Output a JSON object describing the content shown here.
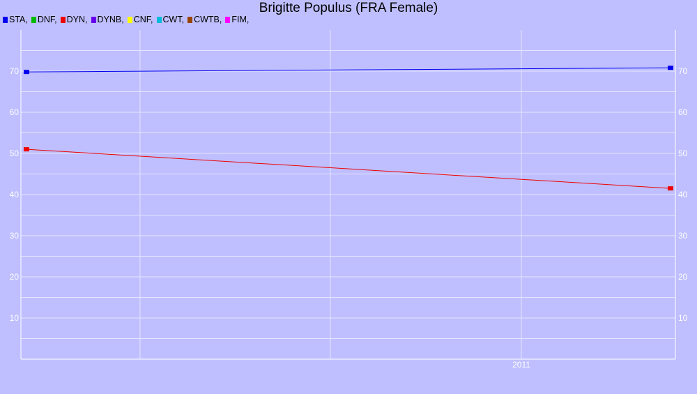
{
  "chart_data": {
    "type": "line",
    "title": "Brigitte Populus (FRA Female)",
    "xlabel": "",
    "ylabel": "",
    "x_tick_labels": [
      "2011"
    ],
    "ylim": [
      0,
      80
    ],
    "y_ticks": [
      10,
      20,
      30,
      40,
      50,
      60,
      70
    ],
    "grid": true,
    "legend_placement": "top-left",
    "legend": [
      {
        "name": "STA",
        "label": "STA,",
        "color": "#0000ee"
      },
      {
        "name": "DNF",
        "label": "DNF,",
        "color": "#00bb00"
      },
      {
        "name": "DYN",
        "label": "DYN,",
        "color": "#ee0000"
      },
      {
        "name": "DYNB",
        "label": "DYNB,",
        "color": "#6600ee"
      },
      {
        "name": "CNF",
        "label": "CNF,",
        "color": "#ffff00"
      },
      {
        "name": "CWT",
        "label": "CWT,",
        "color": "#00bbdd"
      },
      {
        "name": "CWTB",
        "label": "CWTB,",
        "color": "#994400"
      },
      {
        "name": "FIM",
        "label": "FIM,",
        "color": "#ff00ff"
      }
    ],
    "series": [
      {
        "name": "STA",
        "color": "#0000ee",
        "values": [
          69.8,
          70.8
        ]
      },
      {
        "name": "DYN",
        "color": "#ee0000",
        "values": [
          51.0,
          41.5
        ]
      }
    ]
  }
}
